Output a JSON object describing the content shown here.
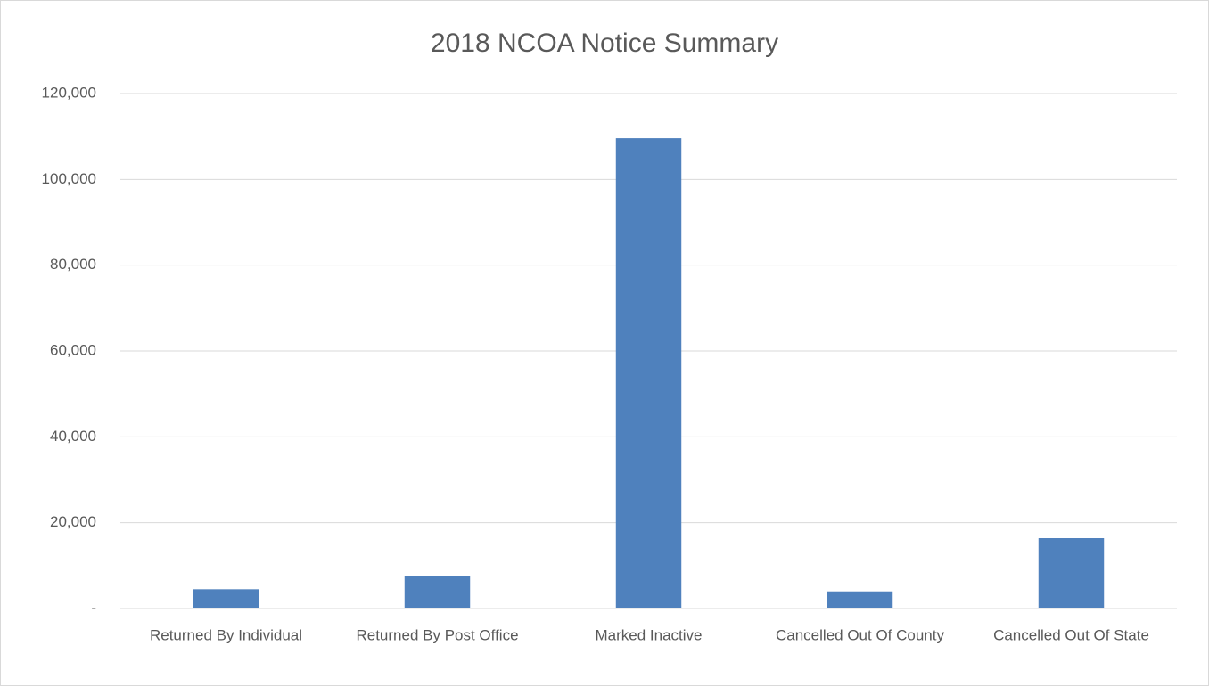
{
  "chart_data": {
    "type": "bar",
    "title": "2018 NCOA Notice Summary",
    "categories": [
      "Returned By Individual",
      "Returned By Post Office",
      "Marked Inactive",
      "Cancelled Out Of County",
      "Cancelled Out Of State"
    ],
    "values": [
      4500,
      7500,
      109600,
      4000,
      16400
    ],
    "color": "#4f81bd",
    "ylim": [
      0,
      120000
    ],
    "yticks": [
      {
        "value": 0,
        "label": "-"
      },
      {
        "value": 20000,
        "label": "20,000"
      },
      {
        "value": 40000,
        "label": "40,000"
      },
      {
        "value": 60000,
        "label": "60,000"
      },
      {
        "value": 80000,
        "label": "80,000"
      },
      {
        "value": 100000,
        "label": "100,000"
      },
      {
        "value": 120000,
        "label": "120,000"
      }
    ],
    "grid": true
  }
}
